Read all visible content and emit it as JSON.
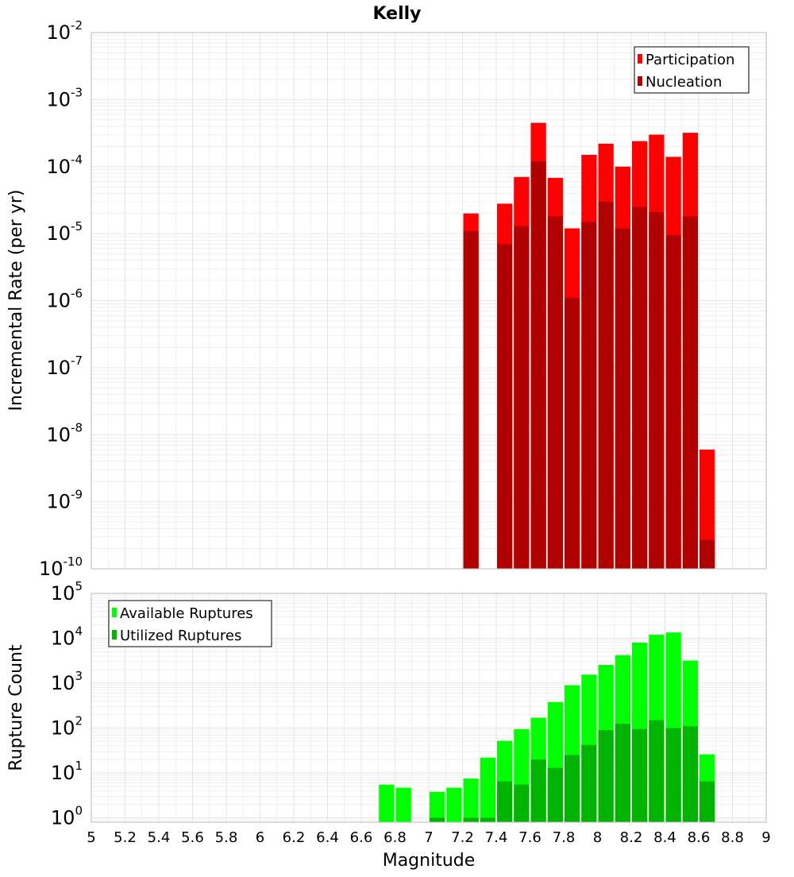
{
  "title": "Kelly",
  "xlabel": "Magnitude",
  "xlim": [
    5,
    9
  ],
  "x_ticks": [
    "5",
    "5.2",
    "5.4",
    "5.6",
    "5.8",
    "6",
    "6.2",
    "6.4",
    "6.6",
    "6.8",
    "7",
    "7.2",
    "7.4",
    "7.6",
    "7.8",
    "8",
    "8.2",
    "8.4",
    "8.6",
    "8.8",
    "9"
  ],
  "colors": {
    "participation": "#ff0000",
    "nucleation": "#b00000",
    "available": "#00ff00",
    "utilized": "#00b300",
    "grid": "#e6e6e6",
    "frame": "#b8b8b8"
  },
  "chart_data": [
    {
      "type": "bar",
      "y_scale": "log",
      "ylabel": "Incremental Rate (per yr)",
      "ylim": [
        1e-10,
        0.01
      ],
      "y_tick_exponents": [
        "-2",
        "-3",
        "-4",
        "-5",
        "-6",
        "-7",
        "-8",
        "-9",
        "-10"
      ],
      "legend": {
        "placement": "top-right",
        "entries": [
          "Participation",
          "Nucleation"
        ]
      },
      "x": [
        7.25,
        7.45,
        7.55,
        7.65,
        7.75,
        7.85,
        7.95,
        8.05,
        8.15,
        8.25,
        8.35,
        8.45,
        8.55,
        8.65
      ],
      "series": [
        {
          "name": "Participation",
          "values": [
            2e-05,
            2.8e-05,
            7e-05,
            0.00045,
            6.8e-05,
            1.2e-05,
            0.00015,
            0.00022,
            0.0001,
            0.00024,
            0.0003,
            0.00014,
            0.00032,
            6e-09
          ]
        },
        {
          "name": "Nucleation",
          "values": [
            1.1e-05,
            7e-06,
            1.3e-05,
            0.00012,
            1.8e-05,
            1.1e-06,
            1.5e-05,
            3e-05,
            1.2e-05,
            2.5e-05,
            2.1e-05,
            9.5e-06,
            1.8e-05,
            2.7e-10
          ]
        }
      ]
    },
    {
      "type": "bar",
      "y_scale": "log",
      "ylabel": "Rupture Count",
      "ylim": [
        0.8,
        100000
      ],
      "y_tick_exponents": [
        "5",
        "4",
        "3",
        "2",
        "1",
        "0"
      ],
      "legend": {
        "placement": "top-left",
        "entries": [
          "Available Ruptures",
          "Utilized Ruptures"
        ]
      },
      "x": [
        6.75,
        6.85,
        7.05,
        7.15,
        7.25,
        7.35,
        7.45,
        7.55,
        7.65,
        7.75,
        7.85,
        7.95,
        8.05,
        8.15,
        8.25,
        8.35,
        8.45,
        8.55,
        8.65
      ],
      "series": [
        {
          "name": "Available Ruptures",
          "values": [
            5.5,
            4.7,
            3.8,
            4.7,
            7.5,
            22,
            52,
            95,
            170,
            380,
            900,
            1550,
            2550,
            4200,
            8000,
            12000,
            13500,
            3200,
            26
          ]
        },
        {
          "name": "Utilized Ruptures",
          "values": [
            0,
            0,
            1,
            0,
            1,
            1,
            6.5,
            5.5,
            20,
            13,
            25,
            42,
            90,
            125,
            95,
            150,
            100,
            110,
            6.5
          ]
        }
      ]
    }
  ]
}
